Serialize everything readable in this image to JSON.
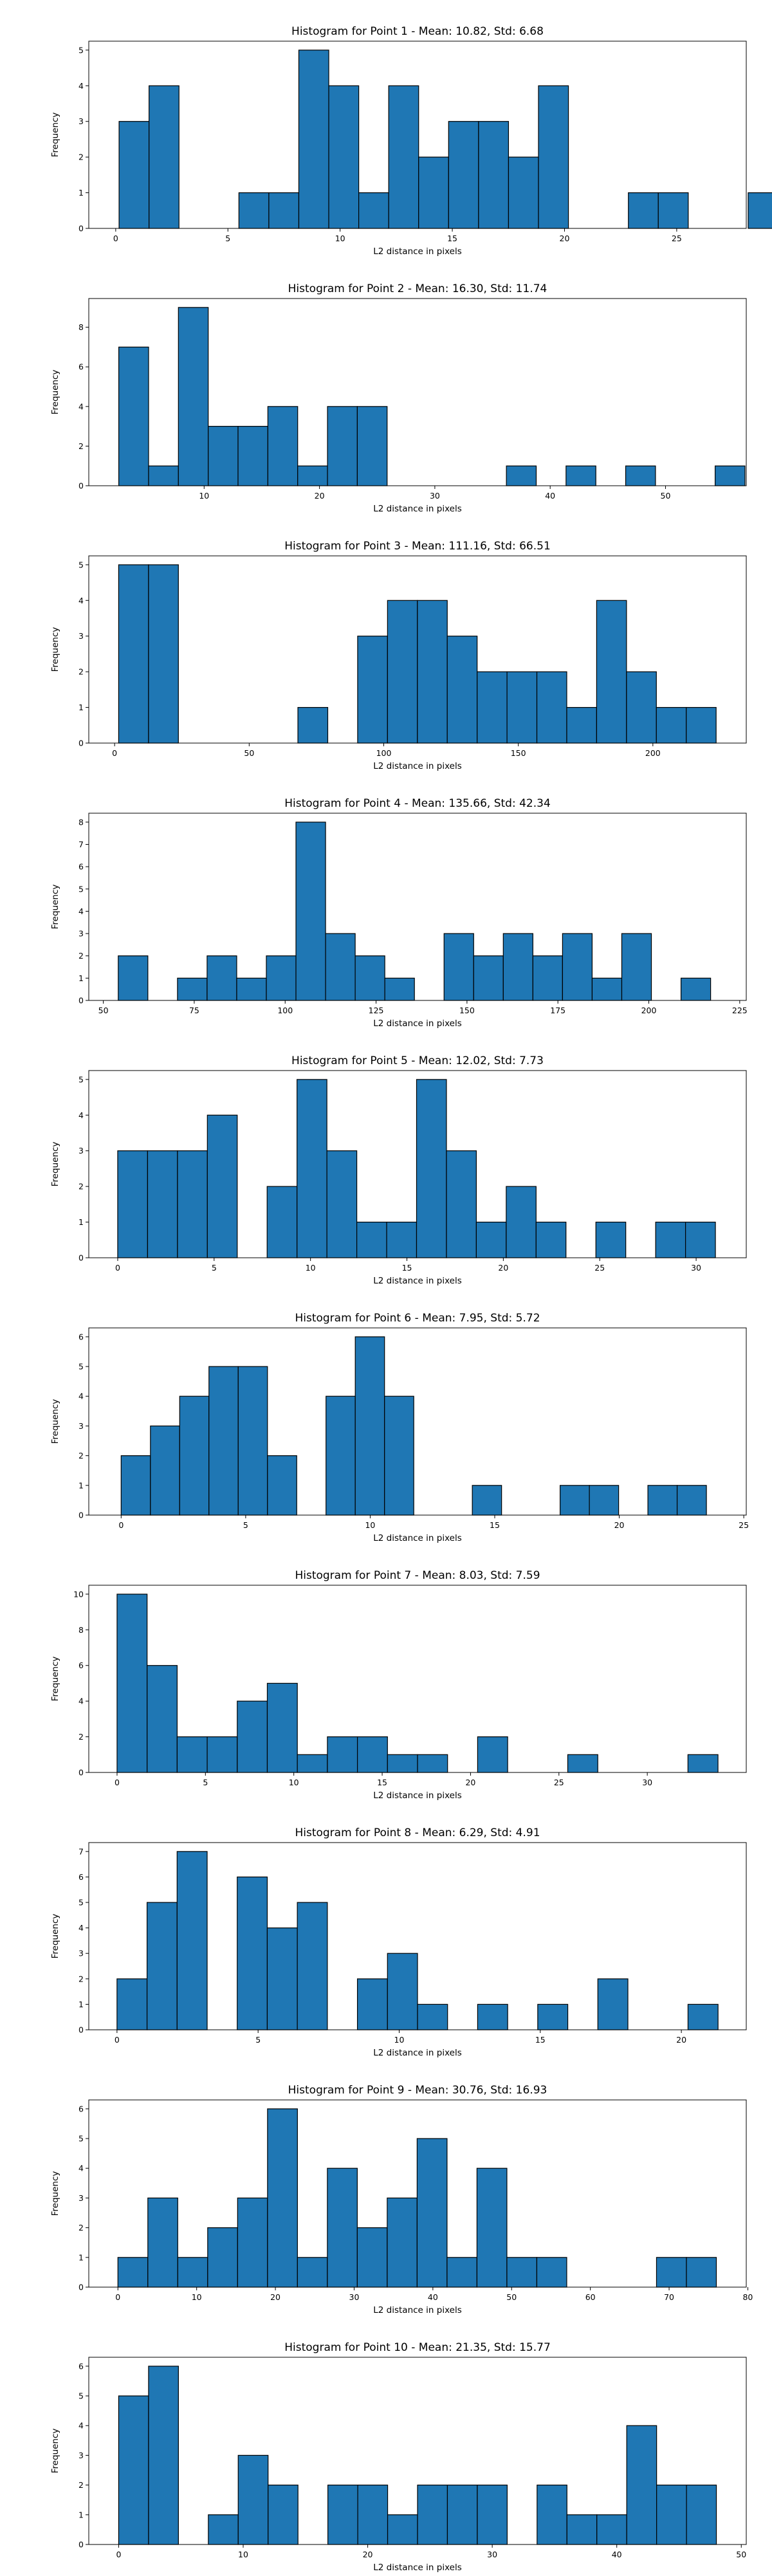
{
  "chart_data": [
    {
      "type": "bar",
      "title": "Histogram for Point 1 - Mean: 10.82, Std: 6.68",
      "xlabel": "L2 distance in pixels",
      "ylabel": "Frequency",
      "bin_start": 0.15,
      "bin_width": 1.335,
      "counts": [
        3,
        4,
        0,
        0,
        1,
        1,
        5,
        4,
        1,
        4,
        2,
        3,
        3,
        2,
        4,
        0,
        0,
        1,
        1,
        0,
        0,
        1
      ],
      "xlim": [
        -1.2,
        28.1
      ],
      "ylim": [
        0,
        5.25
      ],
      "xticks": [
        0,
        5,
        10,
        15,
        20,
        25
      ],
      "yticks": [
        0,
        1,
        2,
        3,
        4,
        5
      ],
      "color": "#1f77b4",
      "edgecolor": "#000000"
    },
    {
      "type": "bar",
      "title": "Histogram for Point 2 - Mean: 16.30, Std: 11.74",
      "xlabel": "L2 distance in pixels",
      "ylabel": "Frequency",
      "bin_start": 2.6,
      "bin_width": 2.585,
      "counts": [
        7,
        1,
        9,
        3,
        3,
        4,
        1,
        4,
        4,
        0,
        0,
        0,
        0,
        1,
        0,
        1,
        0,
        1,
        0,
        0,
        1
      ],
      "xlim": [
        -0.0,
        57.0
      ],
      "ylim": [
        0,
        9.45
      ],
      "xticks": [
        10,
        20,
        30,
        40,
        50
      ],
      "yticks": [
        0,
        2,
        4,
        6,
        8
      ],
      "color": "#1f77b4",
      "edgecolor": "#000000"
    },
    {
      "type": "bar",
      "title": "Histogram for Point 3 - Mean: 111.16, Std: 66.51",
      "xlabel": "L2 distance in pixels",
      "ylabel": "Frequency",
      "bin_start": 1.5,
      "bin_width": 11.1,
      "counts": [
        5,
        5,
        0,
        0,
        0,
        0,
        1,
        0,
        3,
        4,
        4,
        3,
        2,
        2,
        2,
        1,
        4,
        2,
        1,
        1
      ],
      "xlim": [
        -9.6,
        234.7
      ],
      "ylim": [
        0,
        5.25
      ],
      "xticks": [
        0,
        50,
        100,
        150,
        200
      ],
      "yticks": [
        0,
        1,
        2,
        3,
        4,
        5
      ],
      "color": "#1f77b4",
      "edgecolor": "#000000"
    },
    {
      "type": "bar",
      "title": "Histogram for Point 4 - Mean: 135.66, Std: 42.34",
      "xlabel": "L2 distance in pixels",
      "ylabel": "Frequency",
      "bin_start": 54.1,
      "bin_width": 8.145,
      "counts": [
        2,
        0,
        1,
        2,
        1,
        2,
        8,
        3,
        2,
        1,
        0,
        3,
        2,
        3,
        2,
        3,
        1,
        3,
        0,
        1
      ],
      "xlim": [
        46.0,
        226.8
      ],
      "ylim": [
        0,
        8.4
      ],
      "xticks": [
        50,
        75,
        100,
        125,
        150,
        175,
        200,
        225
      ],
      "yticks": [
        0,
        1,
        2,
        3,
        4,
        5,
        6,
        7,
        8
      ],
      "color": "#1f77b4",
      "edgecolor": "#000000"
    },
    {
      "type": "bar",
      "title": "Histogram for Point 5 - Mean: 12.02, Std: 7.73",
      "xlabel": "L2 distance in pixels",
      "ylabel": "Frequency",
      "bin_start": 0.0,
      "bin_width": 1.55,
      "counts": [
        3,
        3,
        3,
        4,
        0,
        2,
        5,
        3,
        1,
        1,
        5,
        3,
        1,
        2,
        1,
        0,
        1,
        0,
        1,
        1
      ],
      "xlim": [
        -1.5,
        32.6
      ],
      "ylim": [
        0,
        5.25
      ],
      "xticks": [
        0,
        5,
        10,
        15,
        20,
        25,
        30
      ],
      "yticks": [
        0,
        1,
        2,
        3,
        4,
        5
      ],
      "color": "#1f77b4",
      "edgecolor": "#000000"
    },
    {
      "type": "bar",
      "title": "Histogram for Point 6 - Mean: 7.95, Std: 5.72",
      "xlabel": "L2 distance in pixels",
      "ylabel": "Frequency",
      "bin_start": 0.0,
      "bin_width": 1.175,
      "counts": [
        2,
        3,
        4,
        5,
        5,
        2,
        0,
        4,
        6,
        4,
        0,
        0,
        1,
        0,
        0,
        1,
        1,
        0,
        1,
        1
      ],
      "xlim": [
        -1.3,
        25.1
      ],
      "ylim": [
        0,
        6.3
      ],
      "xticks": [
        0,
        5,
        10,
        15,
        20,
        25
      ],
      "yticks": [
        0,
        1,
        2,
        3,
        4,
        5,
        6
      ],
      "color": "#1f77b4",
      "edgecolor": "#000000"
    },
    {
      "type": "bar",
      "title": "Histogram for Point 7 - Mean: 8.03, Std: 7.59",
      "xlabel": "L2 distance in pixels",
      "ylabel": "Frequency",
      "bin_start": 0.0,
      "bin_width": 1.7,
      "counts": [
        10,
        6,
        2,
        2,
        4,
        5,
        1,
        2,
        2,
        1,
        1,
        0,
        2,
        0,
        0,
        1,
        0,
        0,
        0,
        1
      ],
      "xlim": [
        -1.6,
        35.6
      ],
      "ylim": [
        0,
        10.5
      ],
      "xticks": [
        0,
        5,
        10,
        15,
        20,
        25,
        30
      ],
      "yticks": [
        0,
        2,
        4,
        6,
        8,
        10
      ],
      "color": "#1f77b4",
      "edgecolor": "#000000"
    },
    {
      "type": "bar",
      "title": "Histogram for Point 8 - Mean: 6.29, Std: 4.91",
      "xlabel": "L2 distance in pixels",
      "ylabel": "Frequency",
      "bin_start": 0.0,
      "bin_width": 1.065,
      "counts": [
        2,
        5,
        7,
        0,
        6,
        4,
        5,
        0,
        2,
        3,
        1,
        0,
        1,
        0,
        1,
        0,
        2,
        0,
        0,
        1
      ],
      "xlim": [
        -1.0,
        22.3
      ],
      "ylim": [
        0,
        7.35
      ],
      "xticks": [
        0,
        5,
        10,
        15,
        20
      ],
      "yticks": [
        0,
        1,
        2,
        3,
        4,
        5,
        6,
        7
      ],
      "color": "#1f77b4",
      "edgecolor": "#000000"
    },
    {
      "type": "bar",
      "title": "Histogram for Point 9 - Mean: 30.76, Std: 16.93",
      "xlabel": "L2 distance in pixels",
      "ylabel": "Frequency",
      "bin_start": 0.0,
      "bin_width": 3.8,
      "counts": [
        1,
        3,
        1,
        2,
        3,
        6,
        1,
        4,
        2,
        3,
        5,
        1,
        4,
        1,
        1,
        0,
        0,
        0,
        1,
        1
      ],
      "xlim": [
        -3.7,
        79.8
      ],
      "ylim": [
        0,
        6.3
      ],
      "xticks": [
        0,
        10,
        20,
        30,
        40,
        50,
        60,
        70,
        80
      ],
      "yticks": [
        0,
        1,
        2,
        3,
        4,
        5,
        6
      ],
      "color": "#1f77b4",
      "edgecolor": "#000000"
    },
    {
      "type": "bar",
      "title": "Histogram for Point 10 - Mean: 21.35, Std: 15.77",
      "xlabel": "L2 distance in pixels",
      "ylabel": "Frequency",
      "bin_start": 0.0,
      "bin_width": 2.4,
      "counts": [
        5,
        6,
        0,
        1,
        3,
        2,
        0,
        2,
        2,
        1,
        2,
        2,
        2,
        0,
        2,
        1,
        1,
        4,
        2,
        2
      ],
      "xlim": [
        -2.4,
        50.4
      ],
      "ylim": [
        0,
        6.3
      ],
      "xticks": [
        0,
        10,
        20,
        30,
        40,
        50
      ],
      "yticks": [
        0,
        1,
        2,
        3,
        4,
        5,
        6
      ],
      "color": "#1f77b4",
      "edgecolor": "#000000"
    }
  ]
}
